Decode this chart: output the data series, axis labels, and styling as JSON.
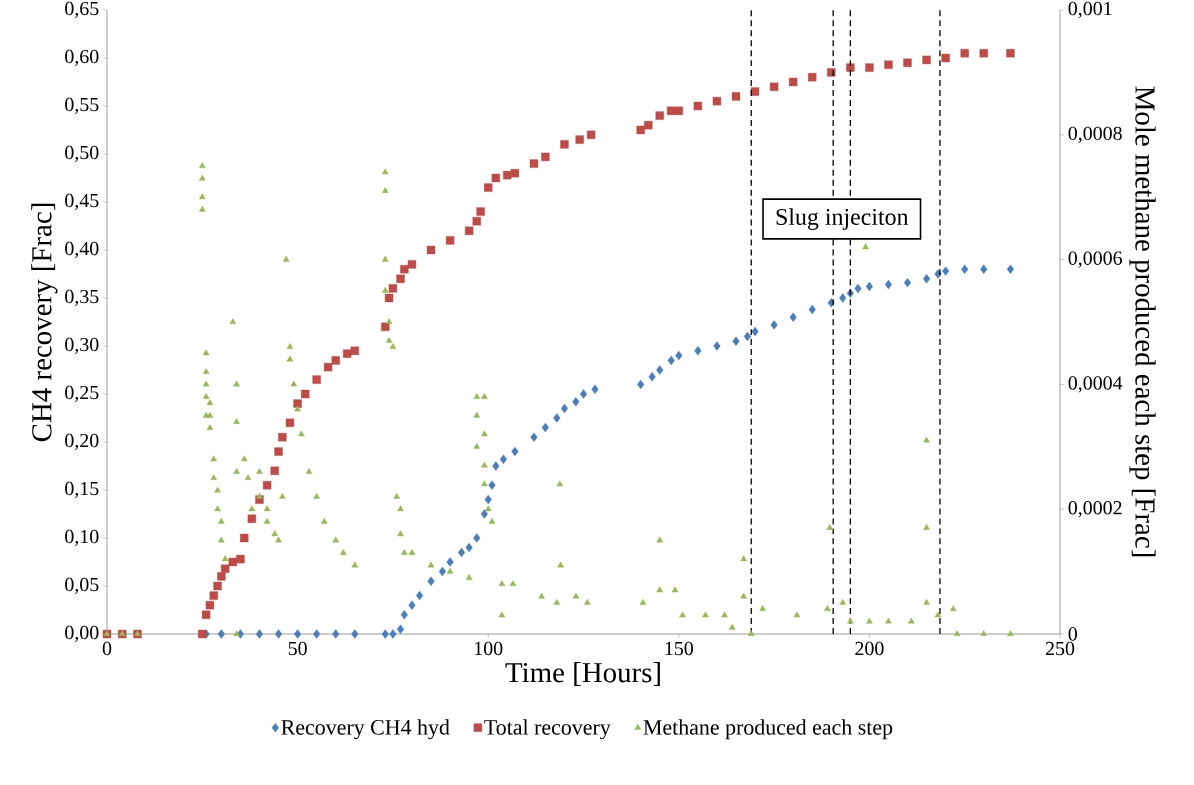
{
  "chart_data": {
    "type": "scatter",
    "xlabel": "Time [Hours]",
    "ylabel": "CH4 recovery [Frac]",
    "y2label": "Mole methane produced each step [Frac]",
    "xlim": [
      0,
      250
    ],
    "xticks": [
      0,
      50,
      100,
      150,
      200,
      250
    ],
    "ylim": [
      0,
      0.65
    ],
    "yticks": [
      {
        "value": 0,
        "label": "0,00"
      },
      {
        "value": 0.05,
        "label": "0,05"
      },
      {
        "value": 0.1,
        "label": "0,10"
      },
      {
        "value": 0.15,
        "label": "0,15"
      },
      {
        "value": 0.2,
        "label": "0,20"
      },
      {
        "value": 0.25,
        "label": "0,25"
      },
      {
        "value": 0.3,
        "label": "0,30"
      },
      {
        "value": 0.35,
        "label": "0,35"
      },
      {
        "value": 0.4,
        "label": "0,40"
      },
      {
        "value": 0.45,
        "label": "0,45"
      },
      {
        "value": 0.5,
        "label": "0,50"
      },
      {
        "value": 0.55,
        "label": "0,55"
      },
      {
        "value": 0.6,
        "label": "0,60"
      },
      {
        "value": 0.65,
        "label": "0,65"
      }
    ],
    "y2lim": [
      0,
      0.001
    ],
    "y2ticks": [
      0,
      {
        "value": 0.0002,
        "label": "0,0002"
      },
      {
        "value": 0.0004,
        "label": "0,0004"
      },
      {
        "value": 0.0006,
        "label": "0,0006"
      },
      {
        "value": 0.0008,
        "label": "0,0008"
      },
      {
        "value": 0.001,
        "label": "0,001"
      }
    ],
    "grid": false,
    "legend": "bottom",
    "ref_lines": [
      {
        "axis": "x",
        "value": 169,
        "color": "#000000",
        "line_style": "dashed"
      },
      {
        "axis": "x",
        "value": 190.5,
        "color": "#000000",
        "line_style": "dashed"
      },
      {
        "axis": "x",
        "value": 195,
        "color": "#000000",
        "line_style": "dashed"
      },
      {
        "axis": "x",
        "value": 218.5,
        "color": "#000000",
        "line_style": "dashed"
      }
    ],
    "annotations": [
      "Slug injeciton"
    ],
    "series": [
      {
        "name": "Recovery CH4 hyd",
        "color": "#4a7ebb",
        "marker": "diamond",
        "x": [
          26,
          30,
          35,
          40,
          45,
          50,
          55,
          60,
          65,
          73,
          75,
          77,
          78,
          80,
          82,
          85,
          88,
          90,
          93,
          95,
          97,
          99,
          100,
          101,
          102,
          104,
          107,
          112,
          115,
          118,
          120,
          123,
          125,
          128,
          140,
          143,
          145,
          148,
          150,
          155,
          160,
          165,
          168,
          170,
          175,
          180,
          185,
          190,
          193,
          195,
          197,
          200,
          205,
          210,
          215,
          218,
          220,
          225,
          230,
          237
        ],
        "values": [
          0,
          0,
          0,
          0,
          0,
          0,
          0,
          0,
          0,
          0,
          0,
          0.005,
          0.02,
          0.03,
          0.04,
          0.055,
          0.065,
          0.075,
          0.085,
          0.09,
          0.1,
          0.125,
          0.14,
          0.155,
          0.175,
          0.182,
          0.19,
          0.205,
          0.215,
          0.225,
          0.235,
          0.242,
          0.25,
          0.255,
          0.26,
          0.268,
          0.275,
          0.285,
          0.29,
          0.295,
          0.3,
          0.305,
          0.31,
          0.315,
          0.322,
          0.33,
          0.338,
          0.345,
          0.35,
          0.355,
          0.36,
          0.362,
          0.364,
          0.366,
          0.37,
          0.375,
          0.378,
          0.38,
          0.38,
          0.38
        ]
      },
      {
        "name": "Total recovery",
        "color": "#be4b48",
        "marker": "square",
        "x": [
          0,
          4,
          8,
          25,
          26,
          27,
          28,
          29,
          30,
          31,
          33,
          35,
          36,
          38,
          40,
          42,
          44,
          45,
          46,
          48,
          50,
          52,
          55,
          58,
          60,
          63,
          65,
          73,
          74,
          75,
          77,
          78,
          80,
          85,
          90,
          95,
          97,
          98,
          100,
          102,
          105,
          107,
          112,
          115,
          120,
          124,
          127,
          140,
          142,
          145,
          148,
          150,
          155,
          160,
          165,
          170,
          175,
          180,
          185,
          190,
          195,
          200,
          205,
          210,
          215,
          220,
          225,
          230,
          237
        ],
        "values": [
          0,
          0,
          0,
          0,
          0.02,
          0.03,
          0.04,
          0.05,
          0.06,
          0.068,
          0.075,
          0.078,
          0.1,
          0.12,
          0.14,
          0.155,
          0.17,
          0.19,
          0.205,
          0.22,
          0.24,
          0.25,
          0.265,
          0.278,
          0.285,
          0.292,
          0.295,
          0.32,
          0.35,
          0.36,
          0.37,
          0.38,
          0.385,
          0.4,
          0.41,
          0.42,
          0.43,
          0.44,
          0.465,
          0.475,
          0.478,
          0.48,
          0.49,
          0.497,
          0.51,
          0.515,
          0.52,
          0.525,
          0.53,
          0.54,
          0.545,
          0.545,
          0.55,
          0.555,
          0.56,
          0.565,
          0.57,
          0.575,
          0.58,
          0.585,
          0.59,
          0.59,
          0.593,
          0.595,
          0.598,
          0.6,
          0.605,
          0.605,
          0.605
        ]
      },
      {
        "name": "Methane produced each step",
        "color": "#98b954",
        "marker": "triangle",
        "axis": "y2",
        "x": [
          0,
          4,
          8,
          25,
          25,
          25,
          25,
          26,
          26,
          26,
          26,
          26,
          27,
          27,
          27,
          28,
          28,
          29,
          29,
          30,
          30,
          31,
          33,
          34,
          34,
          34,
          34,
          36,
          37,
          38,
          40,
          40,
          42,
          42,
          44,
          45,
          46,
          47,
          48,
          48,
          49,
          50,
          51,
          53,
          55,
          57,
          60,
          62,
          65,
          73,
          73,
          73,
          73,
          74,
          74,
          75,
          76,
          77,
          77,
          78,
          80,
          85,
          90,
          95,
          97,
          97,
          97,
          99,
          99,
          99,
          99,
          100,
          101,
          103.6,
          103.6,
          106.5,
          114,
          118,
          118.8,
          119,
          123,
          126,
          140.6,
          145,
          145,
          149,
          151,
          157,
          162,
          164,
          167,
          167,
          169,
          172,
          181,
          189,
          189.6,
          193,
          195,
          199,
          200,
          205,
          211,
          215,
          215,
          215,
          218,
          222,
          223,
          230,
          237
        ],
        "values": [
          0,
          0,
          0,
          0.00075,
          0.00073,
          0.0007,
          0.00068,
          0.00045,
          0.00042,
          0.0004,
          0.00038,
          0.00035,
          0.00037,
          0.00035,
          0.00033,
          0.00028,
          0.00025,
          0.00023,
          0.0002,
          0.00018,
          0.00015,
          0.00012,
          0.0005,
          0,
          0.0004,
          0.00034,
          0.00026,
          0.00028,
          0.00025,
          0.0002,
          0.00026,
          0.00022,
          0.00018,
          0.0002,
          0.00016,
          0.00015,
          0.00022,
          0.0006,
          0.00046,
          0.00044,
          0.0004,
          0.00036,
          0.00032,
          0.00026,
          0.00022,
          0.00018,
          0.00015,
          0.00013,
          0.00011,
          0.00074,
          0.00071,
          0.0006,
          0.00055,
          0.0005,
          0.00047,
          0.00046,
          0.00022,
          0.0002,
          0.00016,
          0.00013,
          0.00013,
          0.00011,
          0.0001,
          9e-05,
          0.00038,
          0.00035,
          0.0003,
          0.00038,
          0.00032,
          0.00027,
          0.00024,
          0.0002,
          0.00018,
          8e-05,
          3e-05,
          8e-05,
          6e-05,
          5e-05,
          0.00024,
          0.00011,
          6e-05,
          5e-05,
          5e-05,
          0.00015,
          7e-05,
          7e-05,
          3e-05,
          3e-05,
          3e-05,
          1e-05,
          0.00012,
          6e-05,
          0,
          4e-05,
          3e-05,
          4e-05,
          0.00017,
          5e-05,
          2e-05,
          0.00062,
          2e-05,
          2e-05,
          2e-05,
          0.00031,
          0.00017,
          5e-05,
          3e-05,
          4e-05,
          0,
          0,
          0
        ]
      }
    ]
  }
}
